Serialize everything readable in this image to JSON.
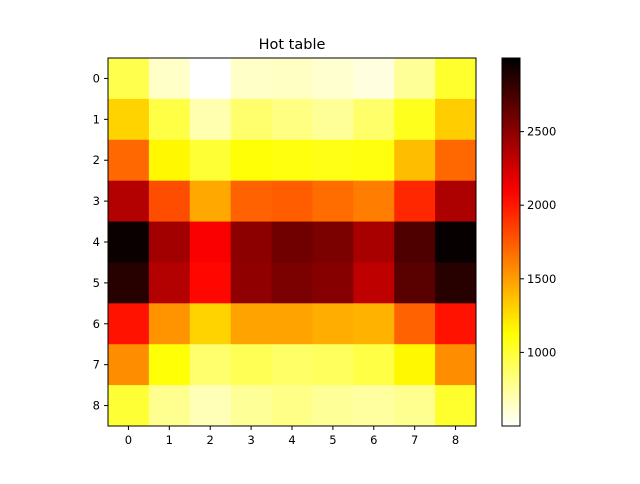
{
  "chart_data": {
    "type": "heatmap",
    "title": "Hot table",
    "colormap": "hot",
    "x_tick_labels": [
      "0",
      "1",
      "2",
      "3",
      "4",
      "5",
      "6",
      "7",
      "8"
    ],
    "y_tick_labels": [
      "0",
      "1",
      "2",
      "3",
      "4",
      "5",
      "6",
      "7",
      "8"
    ],
    "values": [
      [
        940,
        640,
        500,
        640,
        650,
        620,
        580,
        760,
        1020
      ],
      [
        1300,
        960,
        700,
        860,
        810,
        760,
        870,
        1060,
        1320
      ],
      [
        1700,
        1160,
        1000,
        1120,
        1100,
        1080,
        1100,
        1380,
        1700
      ],
      [
        2360,
        1800,
        1460,
        1720,
        1740,
        1680,
        1620,
        1940,
        2380
      ],
      [
        2960,
        2420,
        2100,
        2500,
        2600,
        2560,
        2400,
        2720,
        2980
      ],
      [
        2860,
        2360,
        2060,
        2480,
        2560,
        2520,
        2320,
        2680,
        2860
      ],
      [
        2020,
        1540,
        1300,
        1480,
        1480,
        1440,
        1420,
        1720,
        2020
      ],
      [
        1560,
        1120,
        860,
        920,
        880,
        900,
        960,
        1160,
        1560
      ],
      [
        1000,
        780,
        680,
        760,
        800,
        760,
        740,
        780,
        1020
      ]
    ],
    "colorbar": {
      "vmin": 500,
      "vmax": 3000,
      "ticks": [
        1000,
        1500,
        2000,
        2500
      ],
      "tick_labels": [
        "1000",
        "1500",
        "2000",
        "2500"
      ]
    },
    "grid": false,
    "legend": "none"
  }
}
